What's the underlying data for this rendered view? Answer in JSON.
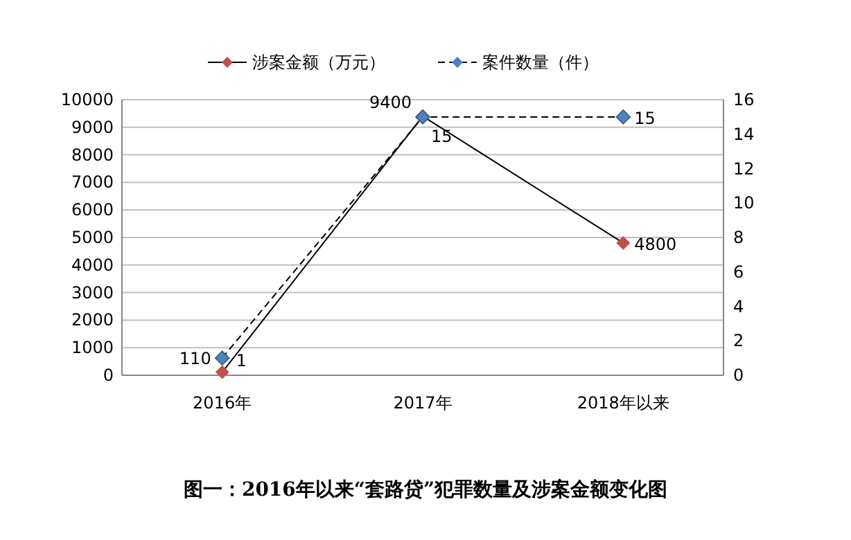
{
  "chart_data": {
    "type": "line",
    "title": "图一：2016年以来“套路贷”犯罪数量及涉案金额变化图",
    "categories": [
      "2016年",
      "2017年",
      "2018年以来"
    ],
    "series": [
      {
        "name": "涉案金额（万元）",
        "color": "#c0504d",
        "values": [
          110,
          9400,
          4800
        ],
        "line_style": "solid"
      },
      {
        "name": "案件数量（件）",
        "color": "#4f81bd",
        "values": [
          1,
          15,
          15
        ],
        "axis": "y2",
        "line_style": "dashed"
      }
    ],
    "ylim": [
      0,
      10000
    ],
    "yticks": [
      0,
      1000,
      2000,
      3000,
      4000,
      5000,
      6000,
      7000,
      8000,
      9000,
      10000
    ],
    "y2lim": [
      0,
      16
    ],
    "y2ticks": [
      0,
      2,
      4,
      6,
      8,
      10,
      12,
      14,
      16
    ],
    "grid": "y",
    "legend": "top",
    "marker": "diamond",
    "data_labels": true
  }
}
